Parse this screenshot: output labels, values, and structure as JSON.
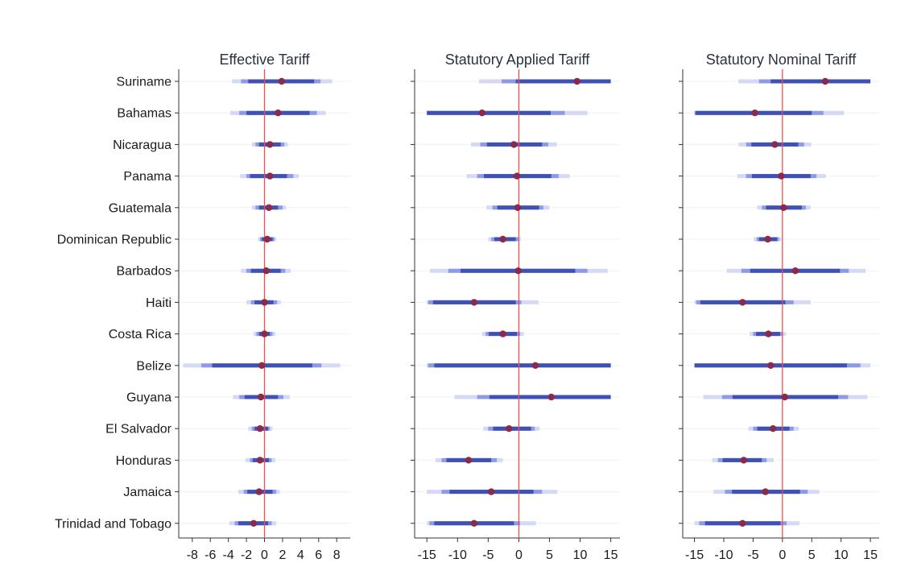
{
  "chart_data": {
    "type": "coefficient-plot",
    "countries": [
      "Suriname",
      "Bahamas",
      "Nicaragua",
      "Panama",
      "Guatemala",
      "Dominican Republic",
      "Barbados",
      "Haiti",
      "Costa Rica",
      "Belize",
      "Guyana",
      "El Salvador",
      "Honduras",
      "Jamaica",
      "Trinidad and Tobago"
    ],
    "colors": {
      "zero_line": "#f05050",
      "point": "#8b2a4a",
      "ci_inner": "#3f51b5",
      "ci_mid": "#8e9ae6",
      "ci_outer": "#d4d9f6",
      "row_grid": "#eef0f3"
    },
    "panels": [
      {
        "title": "Effective Tariff",
        "xlim": [
          -9.5,
          9.5
        ],
        "ticks": [
          "-8",
          "-6",
          "-4",
          "-2",
          "0",
          "2",
          "4",
          "6",
          "8"
        ],
        "tick_values": [
          -8,
          -6,
          -4,
          -2,
          0,
          2,
          4,
          6,
          8
        ],
        "estimates": [
          {
            "point": 1.9,
            "inner": [
              -1.8,
              5.5
            ],
            "mid": [
              -2.6,
              6.2
            ],
            "outer": [
              -3.6,
              7.5
            ]
          },
          {
            "point": 1.5,
            "inner": [
              -2.0,
              5.0
            ],
            "mid": [
              -2.8,
              5.8
            ],
            "outer": [
              -3.8,
              6.8
            ]
          },
          {
            "point": 0.6,
            "inner": [
              -0.6,
              1.8
            ],
            "mid": [
              -1.0,
              2.2
            ],
            "outer": [
              -1.4,
              2.6
            ]
          },
          {
            "point": 0.6,
            "inner": [
              -1.6,
              2.5
            ],
            "mid": [
              -2.0,
              3.2
            ],
            "outer": [
              -2.7,
              3.8
            ]
          },
          {
            "point": 0.5,
            "inner": [
              -0.6,
              1.5
            ],
            "mid": [
              -1.0,
              2.0
            ],
            "outer": [
              -1.4,
              2.4
            ]
          },
          {
            "point": 0.3,
            "inner": [
              -0.3,
              0.9
            ],
            "mid": [
              -0.5,
              1.1
            ],
            "outer": [
              -0.7,
              1.3
            ]
          },
          {
            "point": 0.2,
            "inner": [
              -1.5,
              1.8
            ],
            "mid": [
              -2.0,
              2.3
            ],
            "outer": [
              -2.6,
              2.9
            ]
          },
          {
            "point": 0.0,
            "inner": [
              -1.1,
              1.0
            ],
            "mid": [
              -1.5,
              1.4
            ],
            "outer": [
              -2.0,
              1.8
            ]
          },
          {
            "point": 0.0,
            "inner": [
              -0.6,
              0.6
            ],
            "mid": [
              -0.9,
              0.9
            ],
            "outer": [
              -1.2,
              1.2
            ]
          },
          {
            "point": -0.3,
            "inner": [
              -5.8,
              5.3
            ],
            "mid": [
              -7.0,
              6.3
            ],
            "outer": [
              -9.0,
              8.4
            ]
          },
          {
            "point": -0.4,
            "inner": [
              -2.2,
              1.5
            ],
            "mid": [
              -2.8,
              2.1
            ],
            "outer": [
              -3.5,
              2.8
            ]
          },
          {
            "point": -0.5,
            "inner": [
              -1.1,
              0.4
            ],
            "mid": [
              -1.4,
              0.6
            ],
            "outer": [
              -1.8,
              0.9
            ]
          },
          {
            "point": -0.5,
            "inner": [
              -1.3,
              0.5
            ],
            "mid": [
              -1.6,
              0.8
            ],
            "outer": [
              -2.1,
              1.2
            ]
          },
          {
            "point": -0.6,
            "inner": [
              -1.9,
              0.9
            ],
            "mid": [
              -2.3,
              1.3
            ],
            "outer": [
              -2.9,
              1.7
            ]
          },
          {
            "point": -1.2,
            "inner": [
              -2.9,
              0.4
            ],
            "mid": [
              -3.3,
              0.8
            ],
            "outer": [
              -3.9,
              1.3
            ]
          }
        ]
      },
      {
        "title": "Statutory Applied Tariff",
        "xlim": [
          -17,
          16.5
        ],
        "ticks": [
          "-15",
          "-10",
          "-5",
          "0",
          "5",
          "10",
          "15"
        ],
        "tick_values": [
          -15,
          -10,
          -5,
          0,
          5,
          10,
          15
        ],
        "estimates": [
          {
            "point": 9.5,
            "inner": [
              -0.5,
              15
            ],
            "mid": [
              -2.8,
              15
            ],
            "outer": [
              -6.5,
              15
            ]
          },
          {
            "point": -6.0,
            "inner": [
              -15,
              5.2
            ],
            "mid": [
              -15,
              7.5
            ],
            "outer": [
              -15,
              11.2
            ]
          },
          {
            "point": -0.8,
            "inner": [
              -5.2,
              3.8
            ],
            "mid": [
              -6.3,
              4.8
            ],
            "outer": [
              -7.8,
              6.2
            ]
          },
          {
            "point": -0.3,
            "inner": [
              -5.7,
              5.3
            ],
            "mid": [
              -6.8,
              6.5
            ],
            "outer": [
              -8.5,
              8.3
            ]
          },
          {
            "point": -0.2,
            "inner": [
              -3.5,
              3.3
            ],
            "mid": [
              -4.3,
              4.0
            ],
            "outer": [
              -5.3,
              5.0
            ]
          },
          {
            "point": -2.6,
            "inner": [
              -4.0,
              -0.5
            ],
            "mid": [
              -4.5,
              -0.1
            ],
            "outer": [
              -5.0,
              0.3
            ]
          },
          {
            "point": -0.1,
            "inner": [
              -9.5,
              9.2
            ],
            "mid": [
              -11.5,
              11.2
            ],
            "outer": [
              -14.5,
              14.5
            ]
          },
          {
            "point": -7.3,
            "inner": [
              -14.0,
              -0.5
            ],
            "mid": [
              -14.8,
              0.4
            ],
            "outer": [
              -15,
              3.2
            ]
          },
          {
            "point": -2.6,
            "inner": [
              -4.9,
              -0.3
            ],
            "mid": [
              -5.4,
              0.2
            ],
            "outer": [
              -6.0,
              0.8
            ]
          },
          {
            "point": 2.7,
            "inner": [
              -13.8,
              15
            ],
            "mid": [
              -14.8,
              15
            ],
            "outer": [
              -15,
              15
            ]
          },
          {
            "point": 5.3,
            "inner": [
              -4.8,
              15
            ],
            "mid": [
              -6.8,
              15
            ],
            "outer": [
              -10.5,
              15
            ]
          },
          {
            "point": -1.6,
            "inner": [
              -4.2,
              2.0
            ],
            "mid": [
              -5.0,
              2.6
            ],
            "outer": [
              -5.8,
              3.4
            ]
          },
          {
            "point": -8.2,
            "inner": [
              -11.8,
              -4.5
            ],
            "mid": [
              -12.6,
              -3.6
            ],
            "outer": [
              -13.6,
              -2.6
            ]
          },
          {
            "point": -4.5,
            "inner": [
              -11.3,
              2.4
            ],
            "mid": [
              -12.6,
              3.8
            ],
            "outer": [
              -15,
              6.3
            ]
          },
          {
            "point": -7.3,
            "inner": [
              -13.8,
              -0.8
            ],
            "mid": [
              -14.6,
              0.2
            ],
            "outer": [
              -15,
              2.8
            ]
          }
        ]
      },
      {
        "title": "Statutory Nominal Tariff",
        "xlim": [
          -17,
          16.5
        ],
        "ticks": [
          "-15",
          "-10",
          "-5",
          "0",
          "5",
          "10",
          "15"
        ],
        "tick_values": [
          -15,
          -10,
          -5,
          0,
          5,
          10,
          15
        ],
        "estimates": [
          {
            "point": 7.3,
            "inner": [
              -2.0,
              15
            ],
            "mid": [
              -4.0,
              15
            ],
            "outer": [
              -7.5,
              15
            ]
          },
          {
            "point": -4.7,
            "inner": [
              -14.8,
              5.0
            ],
            "mid": [
              -15,
              7.0
            ],
            "outer": [
              -15,
              10.5
            ]
          },
          {
            "point": -1.3,
            "inner": [
              -5.3,
              2.7
            ],
            "mid": [
              -6.2,
              3.7
            ],
            "outer": [
              -7.5,
              4.9
            ]
          },
          {
            "point": -0.2,
            "inner": [
              -5.2,
              4.8
            ],
            "mid": [
              -6.2,
              5.8
            ],
            "outer": [
              -7.7,
              7.4
            ]
          },
          {
            "point": 0.2,
            "inner": [
              -2.8,
              3.3
            ],
            "mid": [
              -3.5,
              4.0
            ],
            "outer": [
              -4.3,
              4.8
            ]
          },
          {
            "point": -2.5,
            "inner": [
              -4.0,
              -0.9
            ],
            "mid": [
              -4.4,
              -0.6
            ],
            "outer": [
              -4.9,
              -0.2
            ]
          },
          {
            "point": 2.2,
            "inner": [
              -5.5,
              9.8
            ],
            "mid": [
              -7.0,
              11.3
            ],
            "outer": [
              -9.5,
              14.2
            ]
          },
          {
            "point": -6.8,
            "inner": [
              -14.0,
              0.5
            ],
            "mid": [
              -14.7,
              1.9
            ],
            "outer": [
              -15,
              4.8
            ]
          },
          {
            "point": -2.4,
            "inner": [
              -4.5,
              -0.4
            ],
            "mid": [
              -5.0,
              0.1
            ],
            "outer": [
              -5.6,
              0.6
            ]
          },
          {
            "point": -2.0,
            "inner": [
              -15,
              11.0
            ],
            "mid": [
              -15,
              13.3
            ],
            "outer": [
              -15,
              15
            ]
          },
          {
            "point": 0.4,
            "inner": [
              -8.5,
              9.5
            ],
            "mid": [
              -10.3,
              11.2
            ],
            "outer": [
              -13.5,
              14.5
            ]
          },
          {
            "point": -1.6,
            "inner": [
              -4.3,
              1.2
            ],
            "mid": [
              -5.0,
              1.9
            ],
            "outer": [
              -5.8,
              2.8
            ]
          },
          {
            "point": -6.6,
            "inner": [
              -10.2,
              -3.5
            ],
            "mid": [
              -11.0,
              -2.7
            ],
            "outer": [
              -12.0,
              -1.5
            ]
          },
          {
            "point": -2.9,
            "inner": [
              -8.6,
              3.0
            ],
            "mid": [
              -9.8,
              4.3
            ],
            "outer": [
              -11.8,
              6.3
            ]
          },
          {
            "point": -6.8,
            "inner": [
              -13.2,
              -0.3
            ],
            "mid": [
              -14.2,
              0.7
            ],
            "outer": [
              -15,
              2.9
            ]
          }
        ]
      }
    ]
  }
}
